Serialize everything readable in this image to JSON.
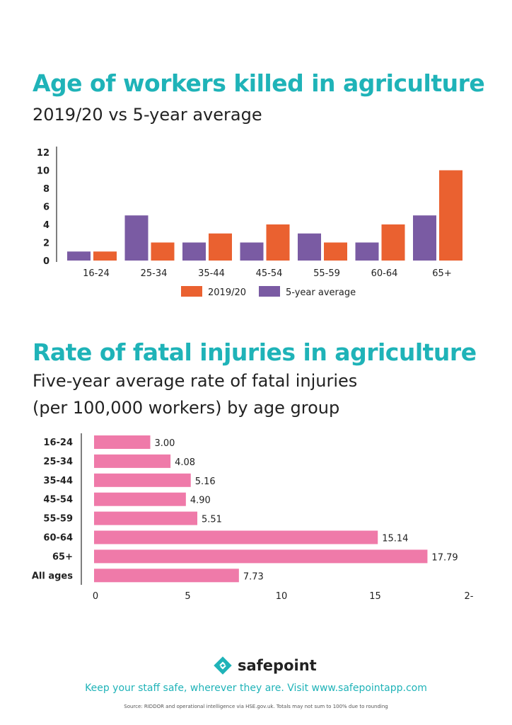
{
  "chart_data": [
    {
      "type": "bar",
      "title": "Age of workers killed in agriculture",
      "subtitle": "2019/20 vs 5-year average",
      "categories": [
        "16-24",
        "25-34",
        "35-44",
        "45-54",
        "55-59",
        "60-64",
        "65+"
      ],
      "series": [
        {
          "name": "5-year average",
          "color": "#7a5ba3",
          "values": [
            1,
            5,
            2,
            2,
            3,
            2,
            5
          ]
        },
        {
          "name": "2019/20",
          "color": "#ea6130",
          "values": [
            1,
            2,
            3,
            4,
            2,
            4,
            10
          ]
        }
      ],
      "legend_order": [
        "2019/20",
        "5-year average"
      ],
      "ylim": [
        0,
        12
      ],
      "yticks": [
        "0",
        "2",
        "4",
        "6",
        "8",
        "10",
        "12"
      ],
      "legend": "bottom",
      "grid": false
    },
    {
      "type": "bar",
      "orientation": "horizontal",
      "title": "Rate of fatal injuries in agriculture",
      "subtitle": [
        "Five-year average rate of fatal injuries",
        "(per 100,000 workers) by age group"
      ],
      "categories": [
        "16-24",
        "25-34",
        "35-44",
        "45-54",
        "55-59",
        "60-64",
        "65+",
        "All ages"
      ],
      "values": [
        3.0,
        4.08,
        5.16,
        4.9,
        5.51,
        15.14,
        17.79,
        7.73
      ],
      "labels": [
        "3.00",
        "4.08",
        "5.16",
        "4.90",
        "5.51",
        "15.14",
        "17.79",
        "7.73"
      ],
      "color": "#ef7aa9",
      "xlim": [
        0,
        20
      ],
      "xticks": [
        "0",
        "5",
        "10",
        "15",
        "2-"
      ],
      "grid": false
    }
  ],
  "footer": {
    "brand": "safepoint",
    "tagline": "Keep your staff safe, wherever they are. Visit www.safepointapp.com",
    "source": "Source: RIDDOR and operational intelligence via HSE.gov.uk. Totals may not sum to 100% due to rounding"
  },
  "colors": {
    "accent": "#1fb3b8"
  }
}
